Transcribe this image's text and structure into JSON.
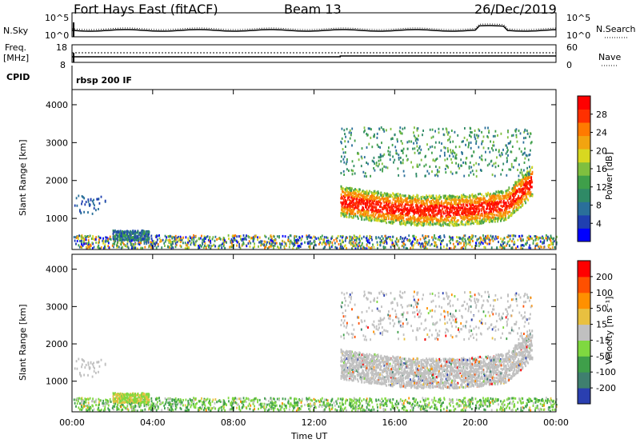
{
  "header": {
    "station": "Fort Hays East (fitACF)",
    "beam": "Beam 13",
    "date": "26/Dec/2019"
  },
  "strip1": {
    "left_label": "N.Sky",
    "left_ticks": [
      "10^5",
      "10^0"
    ],
    "right_ticks": [
      "10^5",
      "10^0"
    ],
    "right_label": "N.Search"
  },
  "strip2": {
    "left_label_top": "Freq.",
    "left_label_unit": "[MHz]",
    "left_ticks": [
      "18",
      "8"
    ],
    "right_ticks": [
      "60",
      "0"
    ],
    "right_label": "Nave"
  },
  "cpid": {
    "label": "CPID",
    "value": "rbsp 200 IF"
  },
  "chart_data": [
    {
      "type": "heatmap",
      "name": "power",
      "ylabel": "Slant Range [km]",
      "yticks": [
        "4000",
        "3000",
        "2000",
        "1000"
      ],
      "xlim": [
        "00:00",
        "24:00"
      ],
      "ylim": [
        180,
        4400
      ],
      "colorbar": {
        "label": "Power [dB]",
        "ticks": [
          "28",
          "24",
          "20",
          "16",
          "12",
          "8",
          "4"
        ],
        "range": [
          0,
          30
        ],
        "colors": [
          "#0000ff",
          "#1f3fb0",
          "#2a6f9a",
          "#2f8a66",
          "#3f9f4a",
          "#7fbf3f",
          "#d8d820",
          "#f2a410",
          "#ff7a00",
          "#ff3000",
          "#ff0000"
        ]
      },
      "regions": [
        {
          "t0": 13.3,
          "t1": 22.8,
          "r0": 1100,
          "r1": 2000,
          "level": "high",
          "note": "Band of strong echoes"
        },
        {
          "t0": 13.3,
          "t1": 22.8,
          "r0": 2000,
          "r1": 3400,
          "level": "medium",
          "note": "Sparse weaker echoes"
        },
        {
          "t0": 2.0,
          "t1": 3.8,
          "r0": 400,
          "r1": 700,
          "level": "medium",
          "note": "Near-range patch"
        },
        {
          "t0": 0.0,
          "t1": 24.0,
          "r0": 180,
          "r1": 600,
          "level": "low",
          "note": "Near-range clutter"
        }
      ]
    },
    {
      "type": "heatmap",
      "name": "velocity",
      "ylabel": "Slant Range [km]",
      "yticks": [
        "4000",
        "3000",
        "2000",
        "1000"
      ],
      "xlim": [
        "00:00",
        "24:00"
      ],
      "ylim": [
        180,
        4400
      ],
      "colorbar": {
        "label": "Velocity [m s⁻¹]",
        "ticks": [
          "200",
          "100",
          "50",
          "15",
          "-15",
          "-50",
          "-100",
          "-200"
        ],
        "colors": [
          "#2a3fb0",
          "#3f7f6f",
          "#3f9f4a",
          "#7fd840",
          "#c0c0c0",
          "#e8c040",
          "#ff9000",
          "#ff5000",
          "#ff0000"
        ]
      }
    }
  ],
  "xaxis": {
    "ticks": [
      "00:00",
      "04:00",
      "08:00",
      "12:00",
      "16:00",
      "20:00",
      "00:00"
    ],
    "label": "Time UT"
  }
}
